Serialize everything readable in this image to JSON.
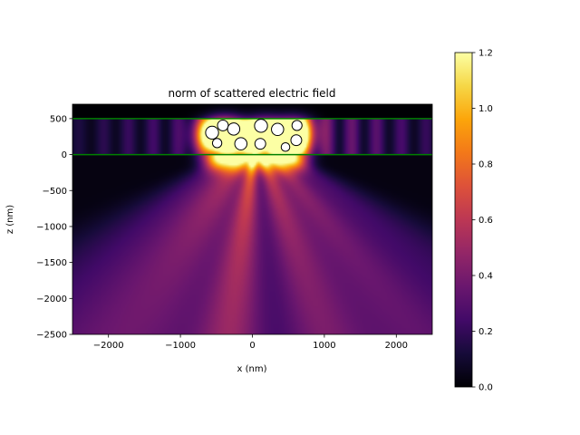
{
  "chart_data": {
    "type": "heatmap",
    "title": "norm of scattered electric field",
    "xlabel": "x (nm)",
    "ylabel": "z (nm)",
    "xlim": [
      -2500,
      2500
    ],
    "ylim": [
      -2500,
      700
    ],
    "xticks": [
      -2000,
      -1000,
      0,
      1000,
      2000
    ],
    "xtick_labels": [
      "−2000",
      "−1000",
      "0",
      "1000",
      "2000"
    ],
    "yticks": [
      500,
      0,
      -500,
      -1000,
      -1500,
      -2000,
      -2500
    ],
    "ytick_labels": [
      "500",
      "0",
      "−500",
      "−1000",
      "−1500",
      "−2000",
      "−2500"
    ],
    "colormap": "inferno",
    "colorbar": {
      "range": [
        0.0,
        1.2
      ],
      "ticks": [
        0.0,
        0.2,
        0.4,
        0.6,
        0.8,
        1.0,
        1.2
      ],
      "tick_labels": [
        "0.0",
        "0.2",
        "0.4",
        "0.6",
        "0.8",
        "1.0",
        "1.2"
      ]
    },
    "layer_boundaries": {
      "color": "#008000",
      "z": [
        500,
        0
      ]
    },
    "particles": [
      {
        "x": -410,
        "z": 405,
        "r": 75
      },
      {
        "x": -560,
        "z": 305,
        "r": 90
      },
      {
        "x": -490,
        "z": 160,
        "r": 65
      },
      {
        "x": -260,
        "z": 355,
        "r": 85
      },
      {
        "x": -160,
        "z": 150,
        "r": 85
      },
      {
        "x": 120,
        "z": 400,
        "r": 90
      },
      {
        "x": 110,
        "z": 150,
        "r": 75
      },
      {
        "x": 350,
        "z": 350,
        "r": 85
      },
      {
        "x": 460,
        "z": 105,
        "r": 60
      },
      {
        "x": 620,
        "z": 405,
        "r": 70
      },
      {
        "x": 610,
        "z": 200,
        "r": 75
      }
    ]
  }
}
